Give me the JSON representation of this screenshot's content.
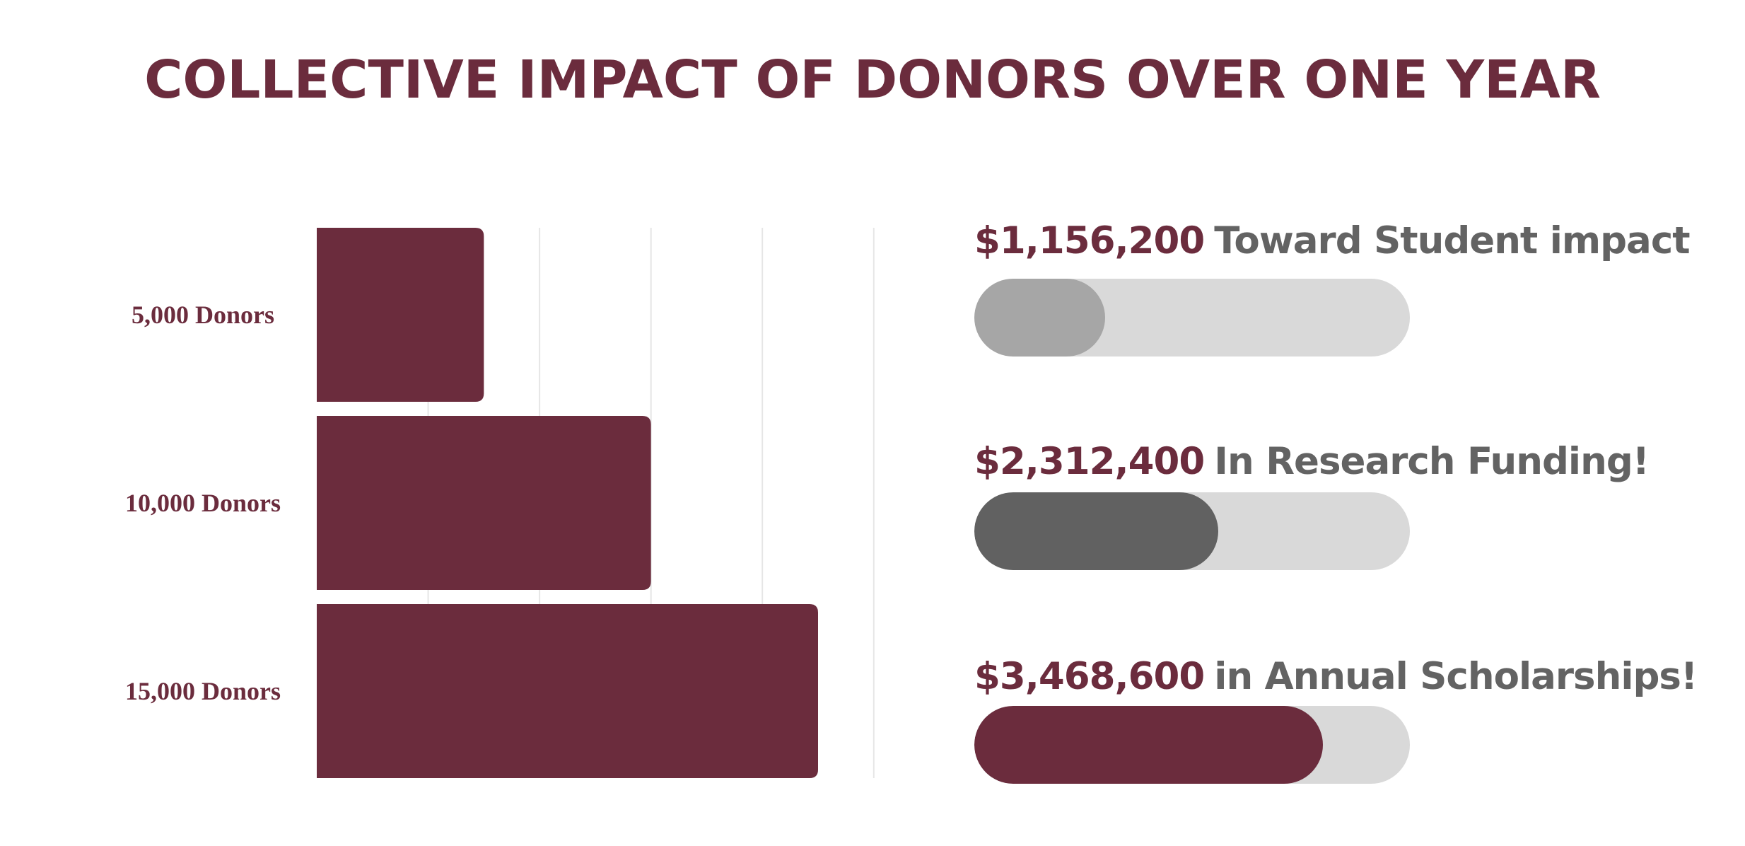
{
  "title": "COLLECTIVE IMPACT OF DONORS OVER ONE YEAR",
  "colors": {
    "brand": "#6B2C3D",
    "gray_text": "#636363",
    "track": "#D9D9D9",
    "grid": "#E6E6E6",
    "fill_light": "#A6A6A6",
    "fill_dark": "#616161",
    "fill_brand": "#6B2C3D"
  },
  "chart_data": {
    "type": "bar",
    "orientation": "horizontal",
    "categories": [
      "5,000 Donors",
      "10,000 Donors",
      "15,000 Donors"
    ],
    "values": [
      5000,
      10000,
      15000
    ],
    "xlim": [
      0,
      15000
    ],
    "grid": true,
    "legend": "none"
  },
  "impacts": [
    {
      "amount": "$1,156,200",
      "label": "Toward Student impact",
      "progress": 0.3,
      "fill": "fill_light"
    },
    {
      "amount": "$2,312,400",
      "label": "In Research Funding!",
      "progress": 0.56,
      "fill": "fill_dark"
    },
    {
      "amount": "$3,468,600",
      "label": "in Annual Scholarships!",
      "progress": 0.8,
      "fill": "fill_brand"
    }
  ]
}
